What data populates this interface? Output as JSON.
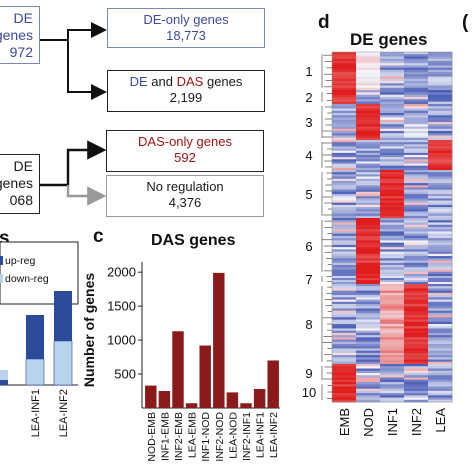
{
  "panel_a": {
    "top_left_box": [
      "DE",
      "genes",
      "972"
    ],
    "mid_left_box": [
      "DE",
      "genes",
      "068"
    ],
    "de_only": {
      "label": "DE-only genes",
      "count": "18,773"
    },
    "de_and_das": {
      "label_prefix": "DE",
      "label_mid": "and",
      "label_das": "DAS",
      "label_suffix": "genes",
      "count": "2,199"
    },
    "das_only": {
      "label": "DAS-only genes",
      "count": "592"
    },
    "no_reg": {
      "label": "No regulation",
      "count": "4,376"
    }
  },
  "panel_b": {
    "letter_fragment": "s",
    "legend": [
      "up-reg",
      "down-reg"
    ],
    "x_labels": [
      "LEA-INF1",
      "LEA-INF2"
    ],
    "colors": {
      "up": "#2b4a9a",
      "down": "#b7d3ee"
    }
  },
  "panel_c": {
    "letter": "c",
    "title": "DAS genes",
    "ylabel": "Number of genes",
    "bar_color": "#8b1a1a"
  },
  "panel_d": {
    "letter": "d",
    "title": "DE genes",
    "cluster_labels": [
      "1",
      "2",
      "3",
      "4",
      "5",
      "6",
      "7",
      "8",
      "9",
      "10"
    ],
    "columns": [
      "EMB",
      "NOD",
      "INF1",
      "INF2",
      "LEA"
    ],
    "next_letter_fragment": "("
  },
  "chart_data": [
    {
      "type": "bar",
      "title": "DAS genes",
      "xlabel": "",
      "ylabel": "Number of genes",
      "categories": [
        "NOD-EMB",
        "INF1-EMB",
        "INF2-EMB",
        "LEA-EMB",
        "INF1-NOD",
        "INF2-NOD",
        "LEA-NOD",
        "INF2-INF1",
        "LEA-INF1",
        "LEA-INF2"
      ],
      "values": [
        330,
        250,
        1130,
        70,
        920,
        1990,
        230,
        70,
        280,
        700
      ],
      "yticks": [
        500,
        1000,
        1500,
        2000
      ],
      "ylim": [
        0,
        2150
      ]
    },
    {
      "type": "bar",
      "stacked": true,
      "legend": [
        "up-reg",
        "down-reg"
      ],
      "categories": [
        "LEA-INF1",
        "LEA-INF2"
      ],
      "series": [
        {
          "name": "down-reg",
          "values": [
            0.26,
            0.44
          ]
        },
        {
          "name": "up-reg",
          "values": [
            0.44,
            0.5
          ]
        }
      ]
    },
    {
      "type": "heatmap",
      "title": "DE genes",
      "columns": [
        "EMB",
        "NOD",
        "INF1",
        "INF2",
        "LEA"
      ],
      "clusters": [
        "1",
        "2",
        "3",
        "4",
        "5",
        "6",
        "7",
        "8",
        "9",
        "10"
      ],
      "cluster_high_column": {
        "1": "EMB",
        "2": "EMB",
        "3": "NOD",
        "4": "LEA",
        "5": "INF1",
        "6": "NOD",
        "7": "NOD",
        "8": "INF2",
        "9": "EMB",
        "10": "EMB"
      },
      "colors": {
        "high": "#e01c1c",
        "mid": "#f4f4f8",
        "low": "#3a4fb0"
      }
    }
  ]
}
